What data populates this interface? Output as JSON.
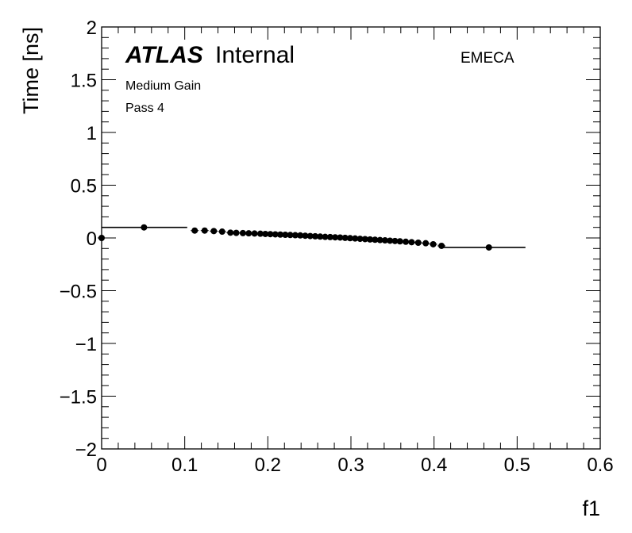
{
  "chart_data": {
    "type": "scatter",
    "xlabel": "f1",
    "ylabel": "Time [ns]",
    "xlim": [
      0,
      0.6
    ],
    "ylim": [
      -2,
      2
    ],
    "x_ticks": [
      "0",
      "0.1",
      "0.2",
      "0.3",
      "0.4",
      "0.5",
      "0.6"
    ],
    "y_ticks": [
      "−2",
      "−1.5",
      "−1",
      "−0.5",
      "0",
      "0.5",
      "1",
      "1.5",
      "2"
    ],
    "labels": {
      "atlas": "ATLAS",
      "internal": "Internal",
      "gain": "Medium Gain",
      "pass": "Pass 4",
      "region": "EMECA"
    },
    "horizontal_segments": [
      {
        "x0": 0.0,
        "x1": 0.103,
        "y": 0.1
      },
      {
        "x0": 0.408,
        "x1": 0.51,
        "y": -0.09
      }
    ],
    "points": [
      {
        "x": 0.0,
        "y": 0.0
      },
      {
        "x": 0.051,
        "y": 0.1
      },
      {
        "x": 0.112,
        "y": 0.07
      },
      {
        "x": 0.124,
        "y": 0.07
      },
      {
        "x": 0.135,
        "y": 0.065
      },
      {
        "x": 0.145,
        "y": 0.06
      },
      {
        "x": 0.155,
        "y": 0.05
      },
      {
        "x": 0.162,
        "y": 0.048
      },
      {
        "x": 0.17,
        "y": 0.046
      },
      {
        "x": 0.177,
        "y": 0.044
      },
      {
        "x": 0.184,
        "y": 0.042
      },
      {
        "x": 0.191,
        "y": 0.04
      },
      {
        "x": 0.197,
        "y": 0.038
      },
      {
        "x": 0.203,
        "y": 0.036
      },
      {
        "x": 0.209,
        "y": 0.034
      },
      {
        "x": 0.215,
        "y": 0.032
      },
      {
        "x": 0.221,
        "y": 0.03
      },
      {
        "x": 0.227,
        "y": 0.028
      },
      {
        "x": 0.233,
        "y": 0.026
      },
      {
        "x": 0.239,
        "y": 0.024
      },
      {
        "x": 0.245,
        "y": 0.021
      },
      {
        "x": 0.251,
        "y": 0.018
      },
      {
        "x": 0.257,
        "y": 0.016
      },
      {
        "x": 0.263,
        "y": 0.013
      },
      {
        "x": 0.269,
        "y": 0.01
      },
      {
        "x": 0.275,
        "y": 0.008
      },
      {
        "x": 0.281,
        "y": 0.006
      },
      {
        "x": 0.287,
        "y": 0.004
      },
      {
        "x": 0.293,
        "y": 0.001
      },
      {
        "x": 0.299,
        "y": -0.002
      },
      {
        "x": 0.305,
        "y": -0.005
      },
      {
        "x": 0.311,
        "y": -0.008
      },
      {
        "x": 0.317,
        "y": -0.011
      },
      {
        "x": 0.323,
        "y": -0.014
      },
      {
        "x": 0.329,
        "y": -0.017
      },
      {
        "x": 0.335,
        "y": -0.02
      },
      {
        "x": 0.341,
        "y": -0.023
      },
      {
        "x": 0.347,
        "y": -0.026
      },
      {
        "x": 0.353,
        "y": -0.029
      },
      {
        "x": 0.359,
        "y": -0.032
      },
      {
        "x": 0.366,
        "y": -0.036
      },
      {
        "x": 0.373,
        "y": -0.04
      },
      {
        "x": 0.381,
        "y": -0.045
      },
      {
        "x": 0.39,
        "y": -0.05
      },
      {
        "x": 0.399,
        "y": -0.06
      },
      {
        "x": 0.409,
        "y": -0.075
      },
      {
        "x": 0.466,
        "y": -0.09
      }
    ]
  }
}
